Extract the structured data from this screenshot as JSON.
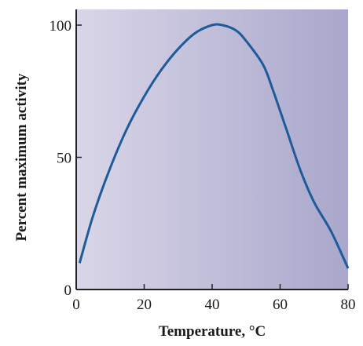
{
  "chart_data": {
    "type": "line",
    "title": "",
    "xlabel": "Temperature, °C",
    "ylabel": "Percent maximum activity",
    "xlim": [
      0,
      80
    ],
    "ylim": [
      0,
      100
    ],
    "xticks": [
      0,
      20,
      40,
      60,
      80
    ],
    "yticks": [
      0,
      50,
      100
    ],
    "grid": false,
    "colors": {
      "line": "#1f5a99",
      "bg_left": "#d9d6e8",
      "bg_right": "#a9a7cb",
      "axis": "#222222"
    },
    "series": [
      {
        "x": [
          1,
          5,
          10,
          15,
          20,
          25,
          30,
          35,
          40,
          43,
          47,
          50,
          55,
          58,
          62,
          66,
          70,
          75,
          80
        ],
        "y": [
          10,
          28,
          46,
          61,
          73,
          83,
          91,
          97,
          100,
          100,
          98,
          94,
          85,
          75,
          60,
          45,
          33,
          22,
          8
        ]
      }
    ]
  }
}
